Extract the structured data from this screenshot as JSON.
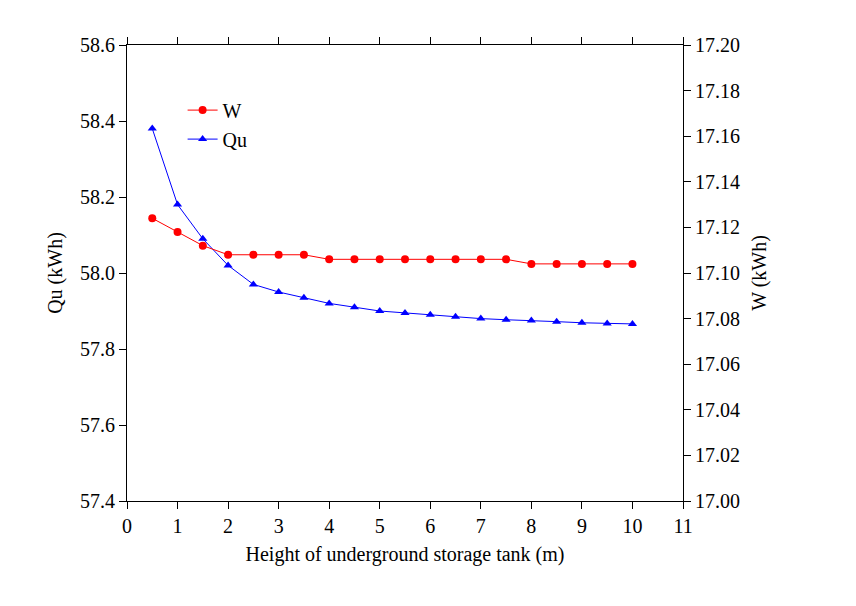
{
  "chart_data": {
    "type": "line",
    "x_label": "Height of underground storage tank (m)",
    "y_label": "Qu (kWh)",
    "y2_label": "W (kWh)",
    "x": [
      0.5,
      1,
      1.5,
      2,
      2.5,
      3,
      3.5,
      4,
      4.5,
      5,
      5.5,
      6,
      6.5,
      7,
      7.5,
      8,
      8.5,
      9,
      9.5,
      10
    ],
    "series": [
      {
        "name": "W",
        "color": "#ff0000",
        "marker": "circle",
        "axis": "y2",
        "values": [
          17.124,
          17.118,
          17.112,
          17.108,
          17.108,
          17.108,
          17.108,
          17.106,
          17.106,
          17.106,
          17.106,
          17.106,
          17.106,
          17.106,
          17.106,
          17.104,
          17.104,
          17.104,
          17.104,
          17.104
        ]
      },
      {
        "name": "Qu",
        "color": "#0000ff",
        "marker": "triangle-up",
        "values": [
          58.38,
          58.18,
          58.09,
          58.02,
          57.97,
          57.95,
          57.935,
          57.92,
          57.91,
          57.9,
          57.895,
          57.89,
          57.885,
          57.88,
          57.877,
          57.875,
          57.872,
          57.869,
          57.867,
          57.866
        ]
      }
    ],
    "xlim": [
      0,
      11
    ],
    "xticks": [
      0,
      1,
      2,
      3,
      4,
      5,
      6,
      7,
      8,
      9,
      10,
      11
    ],
    "ylim": [
      57.4,
      58.6
    ],
    "yticks": [
      57.4,
      57.6,
      57.8,
      {
        "value": 58,
        "label": "58.0"
      },
      58.2,
      58.4,
      58.6
    ],
    "y2lim": [
      17.0,
      17.2
    ],
    "y2ticks": [
      {
        "value": 17,
        "label": "17.00"
      },
      17.02,
      17.04,
      17.06,
      17.08,
      {
        "value": 17.1,
        "label": "17.10"
      },
      17.12,
      17.14,
      17.16,
      17.18,
      {
        "value": 17.2,
        "label": "17.20"
      }
    ],
    "legend": "upper left",
    "grid": false
  }
}
